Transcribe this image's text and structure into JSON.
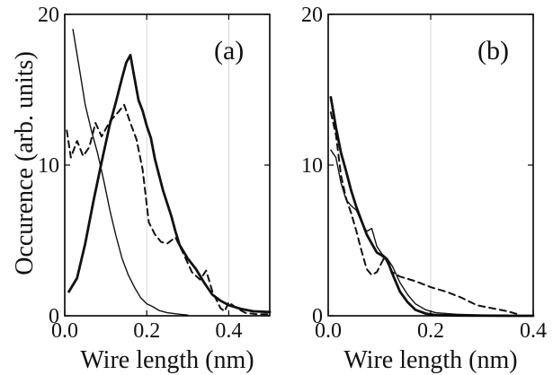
{
  "figure": {
    "ylabel": "Occurence (arb. units)"
  },
  "chart_data": [
    {
      "type": "line",
      "panel_label": "(a)",
      "xlabel": "Wire length (nm)",
      "ylabel": "Occurence (arb. units)",
      "xlim": [
        0,
        0.5
      ],
      "ylim": [
        0,
        20
      ],
      "x_ticks": [
        0.0,
        0.2,
        0.4
      ],
      "x_tick_labels": [
        "0.0",
        "0.2",
        "0.4"
      ],
      "y_ticks": [
        0,
        10,
        20
      ],
      "y_tick_labels": [
        "0",
        "10",
        "20"
      ],
      "grid": "vertical",
      "series": [
        {
          "style": "thin-solid",
          "x": [
            0.02,
            0.035,
            0.05,
            0.065,
            0.08,
            0.095,
            0.11,
            0.125,
            0.14,
            0.155,
            0.17,
            0.185,
            0.2,
            0.215,
            0.23,
            0.25,
            0.28,
            0.3
          ],
          "y": [
            19,
            16.5,
            14,
            12.3,
            10.8,
            9.0,
            7.0,
            5.3,
            3.8,
            2.7,
            1.9,
            1.2,
            0.8,
            0.6,
            0.35,
            0.2,
            0.1,
            0.05
          ]
        },
        {
          "style": "dashed",
          "x": [
            0.005,
            0.015,
            0.03,
            0.045,
            0.06,
            0.075,
            0.09,
            0.11,
            0.13,
            0.145,
            0.16,
            0.175,
            0.19,
            0.205,
            0.22,
            0.235,
            0.25,
            0.27,
            0.29,
            0.31,
            0.33,
            0.345,
            0.36,
            0.38,
            0.39,
            0.4,
            0.42,
            0.44,
            0.47,
            0.5
          ],
          "y": [
            12.3,
            10.5,
            11.6,
            10.6,
            11.2,
            12.8,
            11.9,
            12.9,
            13.5,
            14.0,
            12.8,
            11.7,
            9.7,
            6.2,
            5.4,
            4.9,
            4.8,
            5.2,
            4.1,
            2.9,
            2.4,
            3.0,
            1.6,
            0.5,
            0.3,
            0.9,
            0.5,
            0.2,
            0.1,
            0.1
          ]
        },
        {
          "style": "thick-solid",
          "x": [
            0.01,
            0.03,
            0.05,
            0.07,
            0.09,
            0.11,
            0.125,
            0.14,
            0.15,
            0.16,
            0.17,
            0.18,
            0.19,
            0.2,
            0.21,
            0.22,
            0.24,
            0.26,
            0.27,
            0.28,
            0.3,
            0.32,
            0.34,
            0.36,
            0.38,
            0.4,
            0.43,
            0.46,
            0.5
          ],
          "y": [
            1.6,
            2.5,
            4.8,
            7.6,
            10.2,
            12.7,
            14.2,
            15.8,
            16.8,
            17.3,
            15.8,
            14.3,
            13.6,
            12.6,
            11.8,
            10.4,
            8.3,
            6.6,
            5.6,
            4.7,
            3.8,
            3.1,
            2.2,
            1.4,
            1.0,
            0.7,
            0.45,
            0.3,
            0.25
          ]
        }
      ]
    },
    {
      "type": "line",
      "panel_label": "(b)",
      "xlabel": "Wire length (nm)",
      "ylabel": "",
      "xlim": [
        0,
        0.4
      ],
      "ylim": [
        0,
        20
      ],
      "x_ticks": [
        0.0,
        0.2,
        0.4
      ],
      "x_tick_labels": [
        "0.0",
        "0.2",
        "0.4"
      ],
      "y_ticks": [
        0,
        10,
        20
      ],
      "y_tick_labels": [
        "0",
        "10",
        "20"
      ],
      "grid": "vertical",
      "series": [
        {
          "style": "thin-solid",
          "x": [
            0.005,
            0.015,
            0.025,
            0.035,
            0.045,
            0.055,
            0.065,
            0.075,
            0.085,
            0.095,
            0.105,
            0.115,
            0.125,
            0.14,
            0.155,
            0.17,
            0.19,
            0.21,
            0.25,
            0.3,
            0.35
          ],
          "y": [
            11.0,
            10.5,
            8.8,
            7.7,
            7.3,
            7.0,
            6.2,
            5.6,
            5.8,
            4.6,
            4.1,
            3.8,
            3.3,
            2.2,
            1.4,
            0.8,
            0.4,
            0.2,
            0.1,
            0.05,
            0.05
          ]
        },
        {
          "style": "dashed",
          "x": [
            0.005,
            0.015,
            0.025,
            0.035,
            0.045,
            0.055,
            0.065,
            0.075,
            0.085,
            0.095,
            0.11,
            0.125,
            0.14,
            0.17,
            0.2,
            0.23,
            0.26,
            0.29,
            0.32,
            0.35,
            0.37
          ],
          "y": [
            13.5,
            12.0,
            9.3,
            7.8,
            6.8,
            5.6,
            4.3,
            3.1,
            2.7,
            2.9,
            3.9,
            2.9,
            2.6,
            2.3,
            1.9,
            1.6,
            1.2,
            0.7,
            0.5,
            0.3,
            0.1
          ]
        },
        {
          "style": "thick-solid",
          "x": [
            0.005,
            0.015,
            0.025,
            0.035,
            0.045,
            0.055,
            0.065,
            0.075,
            0.085,
            0.095,
            0.105,
            0.115,
            0.125,
            0.14,
            0.155,
            0.17,
            0.19,
            0.21,
            0.25,
            0.3,
            0.35,
            0.4
          ],
          "y": [
            14.5,
            12.5,
            10.8,
            9.6,
            8.3,
            7.2,
            6.3,
            5.4,
            4.8,
            4.2,
            4.0,
            3.7,
            2.8,
            1.6,
            0.9,
            0.4,
            0.15,
            0.05,
            0.02,
            0.01,
            0.0,
            0.0
          ]
        }
      ]
    }
  ]
}
